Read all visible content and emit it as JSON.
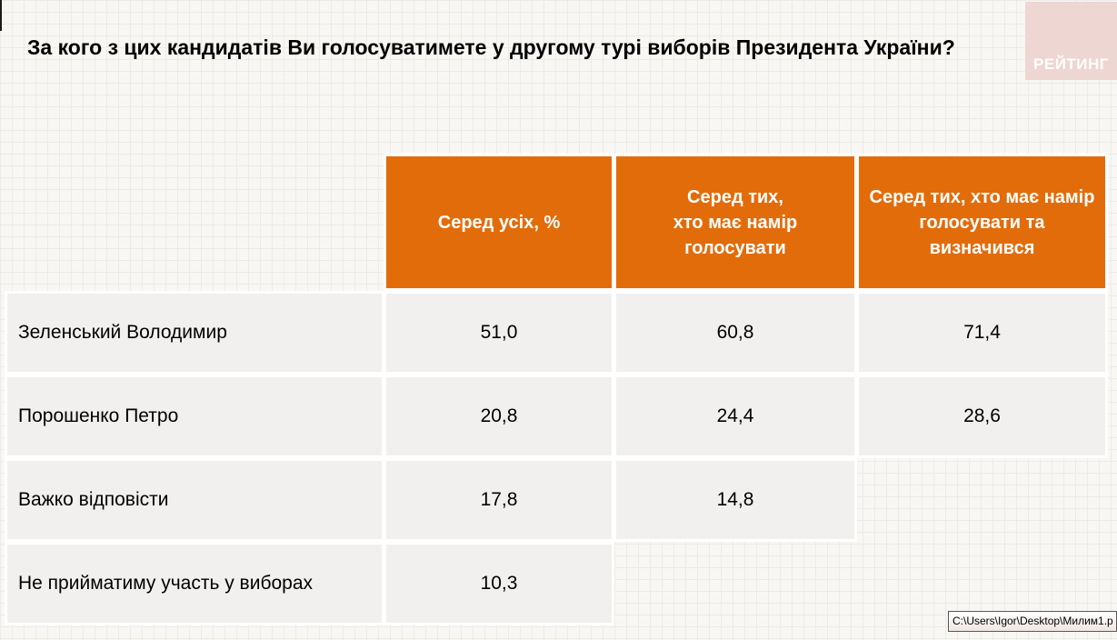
{
  "title": "За кого з цих кандидатів Ви голосуватимете у другому турі виборів Президента України?",
  "logo": {
    "text": "РЕЙТИНГ"
  },
  "tooltip": {
    "text": "C:\\Users\\Igor\\Desktop\\Милим1.p"
  },
  "colors": {
    "header_bg": "#e36c0a",
    "header_text": "#ffffff",
    "cell_bg": "#f1f0ee",
    "logo_bg": "#eed6d2",
    "separator": "#ffffff",
    "slide_bg": "#f8f7f4"
  },
  "chart_data": {
    "type": "table",
    "title": "За кого з цих кандидатів Ви голосуватимете у другому турі виборів Президента України?",
    "columns": [
      "Серед усіх, %",
      "Серед тих,\nхто має намір\nголосувати",
      "Серед тих, хто має намір\nголосувати та\nвизначився"
    ],
    "rows": [
      {
        "label": "Зеленський Володимир",
        "values": [
          "51,0",
          "60,8",
          "71,4"
        ]
      },
      {
        "label": "Порошенко Петро",
        "values": [
          "20,8",
          "24,4",
          "28,6"
        ]
      },
      {
        "label": "Важко відповісти",
        "values": [
          "17,8",
          "14,8",
          null
        ]
      },
      {
        "label": "Не прийматиму участь у виборах",
        "values": [
          "10,3",
          null,
          null
        ]
      }
    ],
    "layout": {
      "legend": false,
      "grid_texture": true,
      "values_unit": "percent"
    }
  }
}
